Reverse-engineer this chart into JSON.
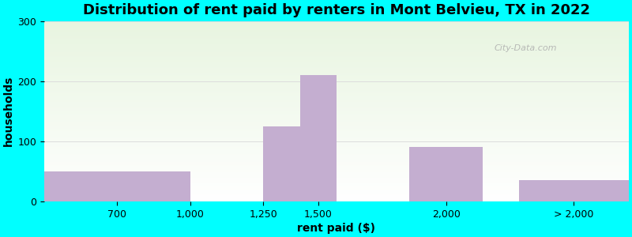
{
  "title": "Distribution of rent paid by renters in Mont Belvieu, TX in 2022",
  "xlabel": "rent paid ($)",
  "ylabel": "households",
  "bar_lefts": [
    0,
    5,
    6,
    7,
    10,
    13
  ],
  "bar_rights": [
    4,
    5,
    7,
    8,
    12,
    16
  ],
  "bar_heights": [
    50,
    0,
    125,
    210,
    90,
    35
  ],
  "bar_color": "#c4aed0",
  "bar_edgecolor": "none",
  "tick_positions": [
    2,
    4,
    6,
    7.5,
    11,
    14.5
  ],
  "tick_labels": [
    "700",
    "1,000",
    "1,250",
    "1,500",
    "2,000",
    "> 2,000"
  ],
  "xlim": [
    0,
    16
  ],
  "ylim": [
    0,
    300
  ],
  "yticks": [
    0,
    100,
    200,
    300
  ],
  "background_outer": "#00ffff",
  "background_inner_top": "#e8f5e0",
  "background_inner_bottom": "#ffffff",
  "title_fontsize": 13,
  "axis_label_fontsize": 10,
  "tick_fontsize": 9,
  "watermark_text": "City-Data.com"
}
